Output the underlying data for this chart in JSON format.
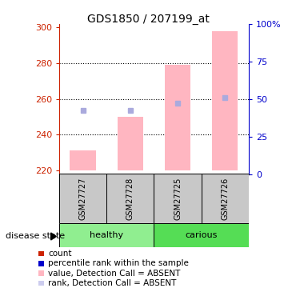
{
  "title": "GDS1850 / 207199_at",
  "samples": [
    "GSM27727",
    "GSM27728",
    "GSM27725",
    "GSM27726"
  ],
  "group_spans": [
    {
      "label": "healthy",
      "start": 0,
      "end": 1,
      "color": "#90EE90"
    },
    {
      "label": "carious",
      "start": 2,
      "end": 3,
      "color": "#55DD55"
    }
  ],
  "sample_bg_color": "#C8C8C8",
  "bar_bottom": 220,
  "ylim_left": [
    218,
    302
  ],
  "ylim_right": [
    0,
    100
  ],
  "yticks_left": [
    220,
    240,
    260,
    280,
    300
  ],
  "yticks_right": [
    0,
    25,
    50,
    75,
    100
  ],
  "ytick_labels_right": [
    "0",
    "25",
    "50",
    "75",
    "100%"
  ],
  "pink_bars_values": [
    231,
    250,
    279,
    298
  ],
  "blue_squares_values": [
    253.5,
    253.5,
    257.5,
    261
  ],
  "left_axis_color": "#CC2200",
  "right_axis_color": "#0000CC",
  "bar_color": "#FFB6C1",
  "square_color": "#AAAADD",
  "legend_items": [
    {
      "color": "#CC2200",
      "label": "count"
    },
    {
      "color": "#0000CC",
      "label": "percentile rank within the sample"
    },
    {
      "color": "#FFB6C1",
      "label": "value, Detection Call = ABSENT"
    },
    {
      "color": "#CCCCEE",
      "label": "rank, Detection Call = ABSENT"
    }
  ],
  "disease_state_label": "disease state",
  "figsize": [
    3.7,
    3.75
  ],
  "dpi": 100
}
